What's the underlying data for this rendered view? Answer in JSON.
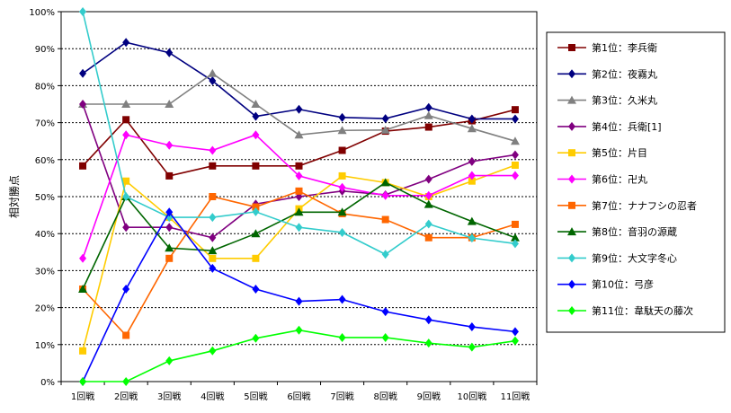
{
  "chart_data": {
    "type": "line",
    "title": "",
    "xlabel": "",
    "ylabel": "相対勝点",
    "categories": [
      "1回戦",
      "2回戦",
      "3回戦",
      "4回戦",
      "5回戦",
      "6回戦",
      "7回戦",
      "8回戦",
      "9回戦",
      "10回戦",
      "11回戦"
    ],
    "y_ticks": [
      "0%",
      "10%",
      "20%",
      "30%",
      "40%",
      "50%",
      "60%",
      "70%",
      "80%",
      "90%",
      "100%"
    ],
    "ylim": [
      0,
      100
    ],
    "grid": "horizontal dashed",
    "legend_position": "right",
    "series": [
      {
        "name": "第1位：李兵衛",
        "color": "#800000",
        "marker": "square",
        "values": [
          58.3,
          70.8,
          55.6,
          58.3,
          58.3,
          58.3,
          62.5,
          67.7,
          68.8,
          70.5,
          73.5
        ]
      },
      {
        "name": "第2位：夜霧丸",
        "color": "#000080",
        "marker": "diamond",
        "values": [
          83.3,
          91.7,
          88.9,
          81.3,
          71.7,
          73.6,
          71.4,
          71.1,
          74.1,
          71.0,
          71.0
        ]
      },
      {
        "name": "第3位：久米丸",
        "color": "#808080",
        "marker": "triangle",
        "values": [
          75.0,
          75.0,
          75.0,
          83.3,
          75.0,
          66.7,
          67.9,
          68.0,
          71.9,
          68.4,
          65.0
        ]
      },
      {
        "name": "第4位：兵衛[1]",
        "color": "#800080",
        "marker": "diamond",
        "values": [
          75.0,
          41.7,
          41.7,
          38.9,
          48.0,
          50.0,
          51.5,
          50.5,
          54.7,
          59.5,
          61.3
        ]
      },
      {
        "name": "第5位：片目",
        "color": "#ffcc00",
        "marker": "square",
        "values": [
          8.3,
          54.2,
          44.4,
          33.3,
          33.3,
          46.7,
          55.6,
          53.8,
          50.0,
          54.2,
          58.5
        ]
      },
      {
        "name": "第6位：卍丸",
        "color": "#ff00ff",
        "marker": "diamond",
        "values": [
          33.3,
          66.7,
          63.9,
          62.5,
          66.7,
          55.6,
          52.5,
          50.3,
          50.3,
          55.7,
          55.7
        ]
      },
      {
        "name": "第7位：ナナフシの忍者",
        "color": "#ff6600",
        "marker": "square",
        "values": [
          25.0,
          12.5,
          33.3,
          50.0,
          47.2,
          51.5,
          45.4,
          43.8,
          38.9,
          38.9,
          42.5
        ]
      },
      {
        "name": "第8位：音羽の源蔵",
        "color": "#006600",
        "marker": "triangle",
        "values": [
          25.0,
          50.0,
          36.1,
          35.4,
          40.0,
          45.8,
          45.8,
          53.8,
          47.9,
          43.3,
          38.9
        ]
      },
      {
        "name": "第9位：大文字冬心",
        "color": "#33cccc",
        "marker": "diamond",
        "values": [
          100.0,
          50.0,
          44.4,
          44.4,
          45.9,
          41.7,
          40.3,
          34.4,
          42.6,
          38.8,
          37.3
        ]
      },
      {
        "name": "第10位：弓彦",
        "color": "#0000ff",
        "marker": "diamond",
        "values": [
          0.0,
          25.0,
          45.8,
          30.6,
          25.0,
          21.7,
          22.2,
          18.9,
          16.7,
          14.8,
          13.5
        ]
      },
      {
        "name": "第11位：韋駄天の藤次",
        "color": "#00ff00",
        "marker": "diamond",
        "values": [
          0.0,
          0.0,
          5.6,
          8.3,
          11.7,
          13.9,
          11.9,
          11.9,
          10.4,
          9.3,
          11.0
        ]
      }
    ]
  }
}
